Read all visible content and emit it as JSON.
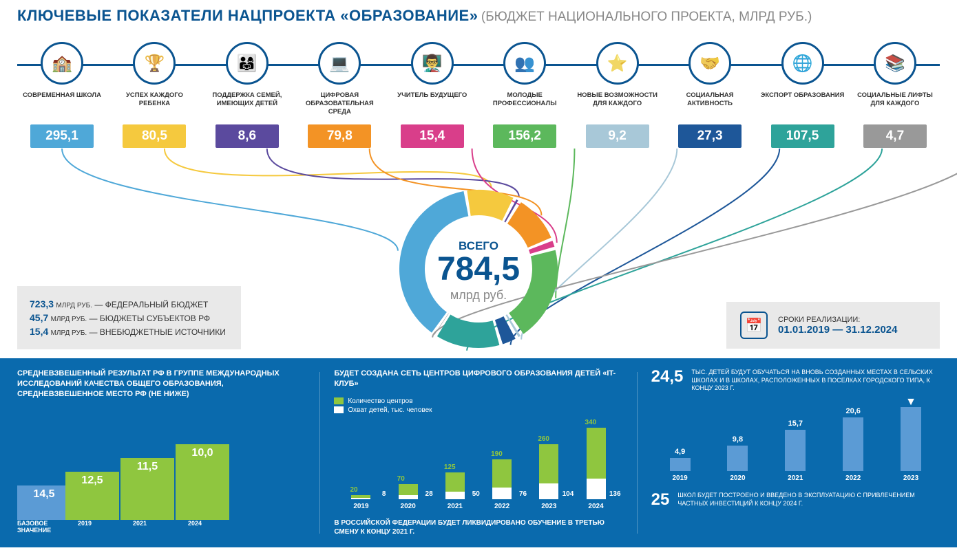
{
  "title_main": "КЛЮЧЕВЫЕ ПОКАЗАТЕЛИ НАЦПРОЕКТА «ОБРАЗОВАНИЕ»",
  "title_sub": "(БЮДЖЕТ НАЦИОНАЛЬНОГО ПРОЕКТА, МЛРД РУБ.)",
  "categories": [
    {
      "label": "СОВРЕМЕННАЯ ШКОЛА",
      "value": "295,1",
      "color": "#4fa8d8"
    },
    {
      "label": "УСПЕХ КАЖДОГО РЕБЕНКА",
      "value": "80,5",
      "color": "#f5c93e"
    },
    {
      "label": "ПОДДЕРЖКА СЕМЕЙ, ИМЕЮЩИХ ДЕТЕЙ",
      "value": "8,6",
      "color": "#5b4a9e"
    },
    {
      "label": "ЦИФРОВАЯ ОБРАЗОВАТЕЛЬНАЯ СРЕДА",
      "value": "79,8",
      "color": "#f39325"
    },
    {
      "label": "УЧИТЕЛЬ БУДУЩЕГО",
      "value": "15,4",
      "color": "#d93e8a"
    },
    {
      "label": "МОЛОДЫЕ ПРОФЕССИОНАЛЫ",
      "value": "156,2",
      "color": "#5cb85c"
    },
    {
      "label": "НОВЫЕ ВОЗМОЖНОСТИ ДЛЯ КАЖДОГО",
      "value": "9,2",
      "color": "#a8c8d8"
    },
    {
      "label": "СОЦИАЛЬНАЯ АКТИВНОСТЬ",
      "value": "27,3",
      "color": "#1e5799"
    },
    {
      "label": "ЭКСПОРТ ОБРАЗОВАНИЯ",
      "value": "107,5",
      "color": "#2ea39a"
    },
    {
      "label": "СОЦИАЛЬНЫЕ ЛИФТЫ ДЛЯ КАЖДОГО",
      "value": "4,7",
      "color": "#999999"
    }
  ],
  "donut": {
    "label1": "ВСЕГО",
    "value": "784,5",
    "label2": "млрд руб.",
    "total": 784.5,
    "slices": [
      {
        "v": 295.1,
        "c": "#4fa8d8"
      },
      {
        "v": 80.5,
        "c": "#f5c93e"
      },
      {
        "v": 8.6,
        "c": "#5b4a9e"
      },
      {
        "v": 79.8,
        "c": "#f39325"
      },
      {
        "v": 15.4,
        "c": "#d93e8a"
      },
      {
        "v": 156.2,
        "c": "#5cb85c"
      },
      {
        "v": 9.2,
        "c": "#a8c8d8"
      },
      {
        "v": 27.3,
        "c": "#1e5799"
      },
      {
        "v": 107.5,
        "c": "#2ea39a"
      },
      {
        "v": 4.7,
        "c": "#999999"
      }
    ]
  },
  "budget_lines": [
    {
      "num": "723,3",
      "unit": "МЛРД РУБ.",
      "text": "— ФЕДЕРАЛЬНЫЙ БЮДЖЕТ"
    },
    {
      "num": "45,7",
      "unit": "МЛРД РУБ.",
      "text": "— БЮДЖЕТЫ СУБЪЕКТОВ РФ"
    },
    {
      "num": "15,4",
      "unit": "МЛРД РУБ.",
      "text": "— ВНЕБЮДЖЕТНЫЕ ИСТОЧНИКИ"
    }
  ],
  "timeline": {
    "label": "СРОКИ РЕАЛИЗАЦИИ:",
    "dates": "01.01.2019 — 31.12.2024"
  },
  "panel1": {
    "title": "СРЕДНЕВЗВЕШЕННЫЙ РЕЗУЛЬТАТ РФ В ГРУППЕ МЕЖДУНАРОДНЫХ ИССЛЕДОВАНИЙ КАЧЕСТВА ОБЩЕГО ОБРАЗОВАНИЯ, СРЕДНЕВЗВЕШЕННОЕ МЕСТО РФ (НЕ НИЖЕ)",
    "steps": [
      {
        "blue": "14,5",
        "green": "12,5"
      },
      {
        "blue": "11,5",
        "green": "10,0"
      }
    ],
    "values": [
      "14,5",
      "12,5",
      "11,5",
      "10,0"
    ],
    "xlabels": [
      "БАЗОВОЕ ЗНАЧЕНИЕ",
      "2019",
      "2021",
      "2024"
    ]
  },
  "panel2": {
    "title": "БУДЕТ СОЗДАНА СЕТЬ ЦЕНТРОВ ЦИФРОВОГО ОБРАЗОВАНИЯ ДЕТЕЙ «IT-КЛУБ»",
    "legend": [
      {
        "color": "#8fc63f",
        "text": "Количество центров"
      },
      {
        "color": "#ffffff",
        "text": "Охват детей, тыс. человек"
      }
    ],
    "years": [
      "2019",
      "2020",
      "2021",
      "2022",
      "2023",
      "2024"
    ],
    "green": [
      20,
      70,
      125,
      190,
      260,
      340
    ],
    "white": [
      8,
      28,
      50,
      76,
      104,
      136
    ],
    "max": 480,
    "note": "В РОССИЙСКОЙ ФЕДЕРАЦИИ БУДЕТ ЛИКВИДИРОВАНО ОБУЧЕНИЕ В ТРЕТЬЮ СМЕНУ К КОНЦУ 2021 Г."
  },
  "panel3": {
    "stat1": {
      "num": "24,5",
      "text": "ТЫС. ДЕТЕЙ БУДУТ ОБУЧАТЬСЯ НА ВНОВЬ СОЗДАННЫХ МЕСТАХ В СЕЛЬСКИХ ШКОЛАХ И В ШКОЛАХ, РАСПОЛОЖЕННЫХ В ПОСЕЛКАХ ГОРОДСКОГО ТИПА, К КОНЦУ 2023 Г."
    },
    "years": [
      "2019",
      "2020",
      "2021",
      "2022",
      "2023"
    ],
    "values": [
      4.9,
      9.8,
      15.7,
      20.6,
      24.5
    ],
    "labels": [
      "4,9",
      "9,8",
      "15,7",
      "20,6",
      ""
    ],
    "max": 25,
    "stat2": {
      "num": "25",
      "text": "ШКОЛ БУДЕТ ПОСТРОЕНО И ВВЕДЕНО В ЭКСПЛУАТАЦИЮ С ПРИВЛЕЧЕНИЕМ ЧАСТНЫХ ИНВЕСТИЦИЙ К КОНЦУ 2024 Г."
    }
  }
}
